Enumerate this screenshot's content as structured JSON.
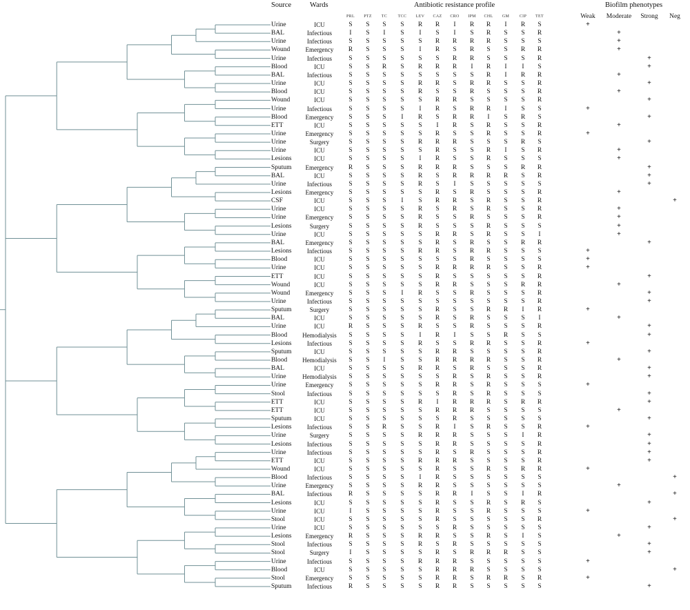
{
  "headers": {
    "source": "Source",
    "wards": "Wards",
    "profile": "Antibiotic resistance profile",
    "biofilm": "Biofilm phenotypes"
  },
  "antibiotics": [
    "PRL",
    "PTZ",
    "TC",
    "TCC",
    "LEV",
    "CAZ",
    "CRO",
    "IPM",
    "CHL",
    "GM",
    "CIP",
    "TET"
  ],
  "phenotypes": [
    "Weak",
    "Moderate",
    "Strong",
    "Neg"
  ],
  "rows": [
    {
      "source": "Urine",
      "ward": "ICU",
      "profile": [
        "S",
        "S",
        "S",
        "S",
        "R",
        "R",
        "I",
        "R",
        "R",
        "I",
        "R",
        "S"
      ],
      "biofilm": "Weak"
    },
    {
      "source": "BAL",
      "ward": "Infectious",
      "profile": [
        "I",
        "S",
        "I",
        "S",
        "I",
        "S",
        "I",
        "S",
        "R",
        "S",
        "S",
        "R"
      ],
      "biofilm": "Moderate"
    },
    {
      "source": "Urine",
      "ward": "Infectious",
      "profile": [
        "S",
        "S",
        "S",
        "S",
        "S",
        "R",
        "R",
        "R",
        "R",
        "S",
        "S",
        "S"
      ],
      "biofilm": "Moderate"
    },
    {
      "source": "Wound",
      "ward": "Emergency",
      "profile": [
        "R",
        "S",
        "S",
        "S",
        "I",
        "R",
        "S",
        "R",
        "S",
        "S",
        "R",
        "R"
      ],
      "biofilm": "Moderate"
    },
    {
      "source": "Urine",
      "ward": "Infectious",
      "profile": [
        "S",
        "S",
        "S",
        "S",
        "S",
        "S",
        "R",
        "R",
        "S",
        "S",
        "S",
        "R"
      ],
      "biofilm": "Strong"
    },
    {
      "source": "Blood",
      "ward": "ICU",
      "profile": [
        "S",
        "S",
        "R",
        "S",
        "R",
        "R",
        "R",
        "I",
        "R",
        "I",
        "I",
        "S"
      ],
      "biofilm": "Strong"
    },
    {
      "source": "BAL",
      "ward": "Infectious",
      "profile": [
        "S",
        "S",
        "S",
        "S",
        "S",
        "S",
        "S",
        "S",
        "R",
        "I",
        "R",
        "R"
      ],
      "biofilm": "Moderate"
    },
    {
      "source": "Urine",
      "ward": "ICU",
      "profile": [
        "S",
        "S",
        "S",
        "S",
        "R",
        "R",
        "S",
        "R",
        "R",
        "S",
        "S",
        "R"
      ],
      "biofilm": "Strong"
    },
    {
      "source": "Blood",
      "ward": "ICU",
      "profile": [
        "S",
        "S",
        "S",
        "S",
        "R",
        "S",
        "S",
        "R",
        "S",
        "S",
        "S",
        "R"
      ],
      "biofilm": "Moderate"
    },
    {
      "source": "Wound",
      "ward": "ICU",
      "profile": [
        "S",
        "S",
        "S",
        "S",
        "S",
        "R",
        "R",
        "S",
        "S",
        "S",
        "S",
        "R"
      ],
      "biofilm": "Strong"
    },
    {
      "source": "Urine",
      "ward": "Infectious",
      "profile": [
        "S",
        "S",
        "S",
        "S",
        "I",
        "R",
        "S",
        "R",
        "R",
        "I",
        "S",
        "S"
      ],
      "biofilm": "Weak"
    },
    {
      "source": "Blood",
      "ward": "Emergency",
      "profile": [
        "S",
        "S",
        "S",
        "I",
        "R",
        "S",
        "R",
        "R",
        "I",
        "S",
        "R",
        "S"
      ],
      "biofilm": "Strong"
    },
    {
      "source": "ETT",
      "ward": "ICU",
      "profile": [
        "S",
        "S",
        "S",
        "S",
        "S",
        "I",
        "R",
        "S",
        "R",
        "S",
        "S",
        "R"
      ],
      "biofilm": "Moderate"
    },
    {
      "source": "Urine",
      "ward": "Emergency",
      "profile": [
        "S",
        "S",
        "S",
        "S",
        "S",
        "R",
        "S",
        "S",
        "R",
        "S",
        "S",
        "R"
      ],
      "biofilm": "Weak"
    },
    {
      "source": "Urine",
      "ward": "Surgery",
      "profile": [
        "S",
        "S",
        "S",
        "S",
        "R",
        "R",
        "R",
        "S",
        "S",
        "S",
        "R",
        "S"
      ],
      "biofilm": "Strong"
    },
    {
      "source": "Urine",
      "ward": "ICU",
      "profile": [
        "S",
        "S",
        "S",
        "S",
        "S",
        "R",
        "S",
        "S",
        "R",
        "I",
        "S",
        "R"
      ],
      "biofilm": "Moderate"
    },
    {
      "source": "Lesions",
      "ward": "ICU",
      "profile": [
        "S",
        "S",
        "S",
        "S",
        "I",
        "R",
        "S",
        "S",
        "R",
        "S",
        "S",
        "S"
      ],
      "biofilm": "Moderate"
    },
    {
      "source": "Sputum",
      "ward": "Emergency",
      "profile": [
        "R",
        "S",
        "S",
        "S",
        "R",
        "R",
        "R",
        "S",
        "S",
        "S",
        "R",
        "R"
      ],
      "biofilm": "Strong"
    },
    {
      "source": "BAL",
      "ward": "ICU",
      "profile": [
        "S",
        "S",
        "S",
        "S",
        "R",
        "S",
        "R",
        "R",
        "R",
        "R",
        "S",
        "R"
      ],
      "biofilm": "Strong"
    },
    {
      "source": "Urine",
      "ward": "Infectious",
      "profile": [
        "S",
        "S",
        "S",
        "S",
        "R",
        "S",
        "I",
        "S",
        "S",
        "S",
        "S",
        "S"
      ],
      "biofilm": "Strong"
    },
    {
      "source": "Lesions",
      "ward": "Emergency",
      "profile": [
        "S",
        "S",
        "S",
        "S",
        "S",
        "R",
        "S",
        "R",
        "S",
        "S",
        "S",
        "R"
      ],
      "biofilm": "Moderate"
    },
    {
      "source": "CSF",
      "ward": "ICU",
      "profile": [
        "S",
        "S",
        "S",
        "I",
        "S",
        "R",
        "R",
        "S",
        "R",
        "S",
        "S",
        "R"
      ],
      "biofilm": "Neg"
    },
    {
      "source": "Urine",
      "ward": "ICU",
      "profile": [
        "S",
        "S",
        "S",
        "S",
        "R",
        "S",
        "R",
        "S",
        "R",
        "S",
        "S",
        "R"
      ],
      "biofilm": "Moderate"
    },
    {
      "source": "Urine",
      "ward": "Emergency",
      "profile": [
        "S",
        "S",
        "S",
        "S",
        "R",
        "S",
        "S",
        "R",
        "S",
        "S",
        "S",
        "R"
      ],
      "biofilm": "Moderate"
    },
    {
      "source": "Lesions",
      "ward": "Surgery",
      "profile": [
        "S",
        "S",
        "S",
        "S",
        "R",
        "S",
        "S",
        "S",
        "R",
        "S",
        "S",
        "S"
      ],
      "biofilm": "Moderate"
    },
    {
      "source": "Urine",
      "ward": "ICU",
      "profile": [
        "S",
        "S",
        "S",
        "S",
        "S",
        "R",
        "R",
        "S",
        "R",
        "S",
        "S",
        "I"
      ],
      "biofilm": "Moderate"
    },
    {
      "source": "BAL",
      "ward": "Emergency",
      "profile": [
        "S",
        "S",
        "S",
        "S",
        "S",
        "R",
        "S",
        "R",
        "S",
        "S",
        "R",
        "R"
      ],
      "biofilm": "Strong"
    },
    {
      "source": "Lesions",
      "ward": "Infectious",
      "profile": [
        "S",
        "S",
        "S",
        "S",
        "R",
        "R",
        "S",
        "R",
        "R",
        "S",
        "S",
        "S"
      ],
      "biofilm": "Weak"
    },
    {
      "source": "Blood",
      "ward": "ICU",
      "profile": [
        "S",
        "S",
        "S",
        "S",
        "S",
        "S",
        "S",
        "R",
        "S",
        "S",
        "S",
        "S"
      ],
      "biofilm": "Weak"
    },
    {
      "source": "Urine",
      "ward": "ICU",
      "profile": [
        "S",
        "S",
        "S",
        "S",
        "S",
        "R",
        "R",
        "R",
        "R",
        "S",
        "S",
        "R"
      ],
      "biofilm": "Weak"
    },
    {
      "source": "ETT",
      "ward": "ICU",
      "profile": [
        "S",
        "S",
        "S",
        "S",
        "S",
        "R",
        "S",
        "S",
        "S",
        "S",
        "S",
        "R"
      ],
      "biofilm": "Strong"
    },
    {
      "source": "Wound",
      "ward": "ICU",
      "profile": [
        "S",
        "S",
        "S",
        "S",
        "S",
        "R",
        "R",
        "S",
        "S",
        "S",
        "R",
        "R"
      ],
      "biofilm": "Moderate"
    },
    {
      "source": "Wound",
      "ward": "Emergency",
      "profile": [
        "S",
        "S",
        "S",
        "I",
        "R",
        "S",
        "S",
        "R",
        "S",
        "S",
        "S",
        "R"
      ],
      "biofilm": "Strong"
    },
    {
      "source": "Urine",
      "ward": "Infectious",
      "profile": [
        "S",
        "S",
        "S",
        "S",
        "S",
        "S",
        "S",
        "S",
        "S",
        "S",
        "S",
        "R"
      ],
      "biofilm": "Strong"
    },
    {
      "source": "Sputum",
      "ward": "Surgery",
      "profile": [
        "S",
        "S",
        "S",
        "S",
        "S",
        "R",
        "S",
        "S",
        "R",
        "R",
        "I",
        "R"
      ],
      "biofilm": "Weak"
    },
    {
      "source": "BAL",
      "ward": "ICU",
      "profile": [
        "S",
        "S",
        "S",
        "S",
        "S",
        "R",
        "S",
        "R",
        "S",
        "S",
        "S",
        "I"
      ],
      "biofilm": "Moderate"
    },
    {
      "source": "Urine",
      "ward": "ICU",
      "profile": [
        "R",
        "S",
        "S",
        "S",
        "R",
        "S",
        "S",
        "R",
        "S",
        "S",
        "S",
        "R"
      ],
      "biofilm": "Strong"
    },
    {
      "source": "Blood",
      "ward": "Hemodialysis",
      "profile": [
        "S",
        "S",
        "S",
        "S",
        "I",
        "R",
        "I",
        "S",
        "S",
        "R",
        "S",
        "S"
      ],
      "biofilm": "Strong"
    },
    {
      "source": "Lesions",
      "ward": "Infectious",
      "profile": [
        "S",
        "S",
        "S",
        "S",
        "R",
        "S",
        "S",
        "R",
        "R",
        "S",
        "S",
        "R"
      ],
      "biofilm": "Weak"
    },
    {
      "source": "Sputum",
      "ward": "ICU",
      "profile": [
        "S",
        "S",
        "S",
        "S",
        "S",
        "R",
        "R",
        "S",
        "S",
        "S",
        "S",
        "R"
      ],
      "biofilm": "Strong"
    },
    {
      "source": "Blood",
      "ward": "Hemodialysis",
      "profile": [
        "S",
        "S",
        "I",
        "S",
        "S",
        "R",
        "R",
        "R",
        "R",
        "S",
        "S",
        "R"
      ],
      "biofilm": "Moderate"
    },
    {
      "source": "BAL",
      "ward": "ICU",
      "profile": [
        "S",
        "S",
        "S",
        "S",
        "R",
        "R",
        "S",
        "R",
        "S",
        "S",
        "S",
        "R"
      ],
      "biofilm": "Strong"
    },
    {
      "source": "Urine",
      "ward": "Hemodialysis",
      "profile": [
        "S",
        "S",
        "S",
        "S",
        "S",
        "S",
        "R",
        "S",
        "R",
        "S",
        "S",
        "R"
      ],
      "biofilm": "Strong"
    },
    {
      "source": "Urine",
      "ward": "Emergency",
      "profile": [
        "S",
        "S",
        "S",
        "S",
        "S",
        "R",
        "R",
        "S",
        "R",
        "S",
        "S",
        "S"
      ],
      "biofilm": "Weak"
    },
    {
      "source": "Stool",
      "ward": "Infectious",
      "profile": [
        "S",
        "S",
        "S",
        "S",
        "S",
        "S",
        "R",
        "S",
        "R",
        "S",
        "S",
        "S"
      ],
      "biofilm": "Strong"
    },
    {
      "source": "ETT",
      "ward": "ICU",
      "profile": [
        "S",
        "S",
        "S",
        "S",
        "R",
        "I",
        "R",
        "R",
        "R",
        "S",
        "R",
        "R"
      ],
      "biofilm": "Strong"
    },
    {
      "source": "ETT",
      "ward": "ICU",
      "profile": [
        "S",
        "S",
        "S",
        "S",
        "S",
        "R",
        "R",
        "R",
        "S",
        "S",
        "S",
        "S"
      ],
      "biofilm": "Moderate"
    },
    {
      "source": "Sputum",
      "ward": "ICU",
      "profile": [
        "S",
        "S",
        "S",
        "S",
        "S",
        "S",
        "R",
        "S",
        "S",
        "S",
        "S",
        "S"
      ],
      "biofilm": "Strong"
    },
    {
      "source": "Lesions",
      "ward": "Infectious",
      "profile": [
        "S",
        "S",
        "R",
        "S",
        "S",
        "R",
        "I",
        "S",
        "R",
        "S",
        "S",
        "R"
      ],
      "biofilm": "Weak"
    },
    {
      "source": "Urine",
      "ward": "Surgery",
      "profile": [
        "S",
        "S",
        "S",
        "S",
        "R",
        "R",
        "R",
        "S",
        "S",
        "S",
        "I",
        "R"
      ],
      "biofilm": "Strong"
    },
    {
      "source": "Lesions",
      "ward": "Infectious",
      "profile": [
        "S",
        "S",
        "S",
        "S",
        "S",
        "R",
        "R",
        "S",
        "S",
        "S",
        "S",
        "R"
      ],
      "biofilm": "Strong"
    },
    {
      "source": "Urine",
      "ward": "Infectious",
      "profile": [
        "S",
        "S",
        "S",
        "S",
        "S",
        "R",
        "S",
        "R",
        "S",
        "S",
        "S",
        "R"
      ],
      "biofilm": "Strong"
    },
    {
      "source": "ETT",
      "ward": "ICU",
      "profile": [
        "S",
        "S",
        "S",
        "S",
        "R",
        "R",
        "R",
        "S",
        "S",
        "S",
        "S",
        "R"
      ],
      "biofilm": "Strong"
    },
    {
      "source": "Wound",
      "ward": "ICU",
      "profile": [
        "S",
        "S",
        "S",
        "S",
        "S",
        "R",
        "S",
        "S",
        "R",
        "S",
        "R",
        "R"
      ],
      "biofilm": "Weak"
    },
    {
      "source": "Blood",
      "ward": "Infectious",
      "profile": [
        "S",
        "S",
        "S",
        "S",
        "I",
        "R",
        "S",
        "S",
        "S",
        "S",
        "S",
        "S"
      ],
      "biofilm": "Neg"
    },
    {
      "source": "Urine",
      "ward": "Emergency",
      "profile": [
        "S",
        "S",
        "S",
        "S",
        "R",
        "R",
        "S",
        "S",
        "S",
        "S",
        "S",
        "S"
      ],
      "biofilm": "Moderate"
    },
    {
      "source": "BAL",
      "ward": "Infectious",
      "profile": [
        "R",
        "S",
        "S",
        "S",
        "S",
        "R",
        "R",
        "I",
        "S",
        "S",
        "I",
        "R"
      ],
      "biofilm": "Neg"
    },
    {
      "source": "Lesions",
      "ward": "ICU",
      "profile": [
        "S",
        "S",
        "S",
        "S",
        "S",
        "R",
        "S",
        "S",
        "R",
        "S",
        "R",
        "S"
      ],
      "biofilm": "Strong"
    },
    {
      "source": "Urine",
      "ward": "ICU",
      "profile": [
        "I",
        "S",
        "S",
        "S",
        "S",
        "R",
        "S",
        "S",
        "R",
        "S",
        "S",
        "S"
      ],
      "biofilm": "Weak"
    },
    {
      "source": "Stool",
      "ward": "ICU",
      "profile": [
        "S",
        "S",
        "S",
        "S",
        "S",
        "R",
        "S",
        "S",
        "S",
        "S",
        "S",
        "R"
      ],
      "biofilm": "Neg"
    },
    {
      "source": "Urine",
      "ward": "ICU",
      "profile": [
        "S",
        "S",
        "S",
        "S",
        "S",
        "S",
        "R",
        "S",
        "S",
        "S",
        "S",
        "S"
      ],
      "biofilm": "Strong"
    },
    {
      "source": "Lesions",
      "ward": "Emergency",
      "profile": [
        "R",
        "S",
        "S",
        "S",
        "R",
        "R",
        "S",
        "S",
        "R",
        "S",
        "I",
        "S"
      ],
      "biofilm": "Moderate"
    },
    {
      "source": "Stool",
      "ward": "Infectious",
      "profile": [
        "S",
        "S",
        "S",
        "S",
        "R",
        "S",
        "R",
        "S",
        "S",
        "S",
        "S",
        "S"
      ],
      "biofilm": "Strong"
    },
    {
      "source": "Stool",
      "ward": "Surgery",
      "profile": [
        "I",
        "S",
        "S",
        "S",
        "S",
        "R",
        "S",
        "R",
        "R",
        "R",
        "S",
        "S"
      ],
      "biofilm": "Strong"
    },
    {
      "source": "Urine",
      "ward": "Infectious",
      "profile": [
        "S",
        "S",
        "S",
        "S",
        "R",
        "R",
        "R",
        "S",
        "S",
        "S",
        "S",
        "S"
      ],
      "biofilm": "Weak"
    },
    {
      "source": "Blood",
      "ward": "ICU",
      "profile": [
        "S",
        "S",
        "S",
        "S",
        "S",
        "R",
        "R",
        "R",
        "S",
        "S",
        "S",
        "S"
      ],
      "biofilm": "Neg"
    },
    {
      "source": "Stool",
      "ward": "Emergency",
      "profile": [
        "S",
        "S",
        "S",
        "S",
        "S",
        "R",
        "R",
        "S",
        "R",
        "R",
        "S",
        "R"
      ],
      "biofilm": "Weak"
    },
    {
      "source": "Sputum",
      "ward": "Infectious",
      "profile": [
        "R",
        "S",
        "S",
        "S",
        "S",
        "R",
        "R",
        "S",
        "S",
        "S",
        "S",
        "S"
      ],
      "biofilm": "Strong"
    }
  ]
}
